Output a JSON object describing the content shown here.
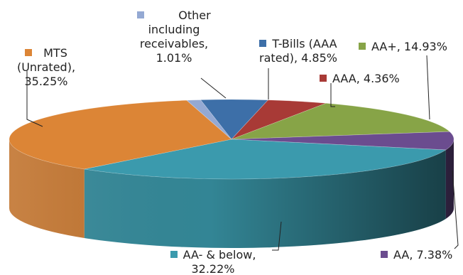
{
  "chart_data": {
    "type": "pie",
    "style": "3d",
    "slices": [
      {
        "label": "T-Bills (AAA rated)",
        "value": 4.85,
        "display": [
          "T-Bills (AAA",
          "rated), 4.85%"
        ],
        "color": "#3d6fa8"
      },
      {
        "label": "AAA",
        "value": 4.36,
        "display": [
          "AAA, 4.36%"
        ],
        "color": "#a83a36"
      },
      {
        "label": "AA+",
        "value": 14.93,
        "display": [
          "AA+, 14.93%"
        ],
        "color": "#87a447"
      },
      {
        "label": "AA",
        "value": 7.38,
        "display": [
          "AA, 7.38%"
        ],
        "color": "#6b4c8f"
      },
      {
        "label": "AA- & below",
        "value": 32.22,
        "display": [
          "AA- & below,",
          "32.22%"
        ],
        "color": "#3b9aad"
      },
      {
        "label": "MTS (Unrated)",
        "value": 35.25,
        "display": [
          "MTS",
          "(Unrated),",
          "35.25%"
        ],
        "color": "#dc8536"
      },
      {
        "label": "Other including receivables",
        "value": 1.01,
        "display": [
          "Other",
          "including",
          "receivables,",
          "1.01%"
        ],
        "color": "#94a9d3"
      }
    ]
  }
}
